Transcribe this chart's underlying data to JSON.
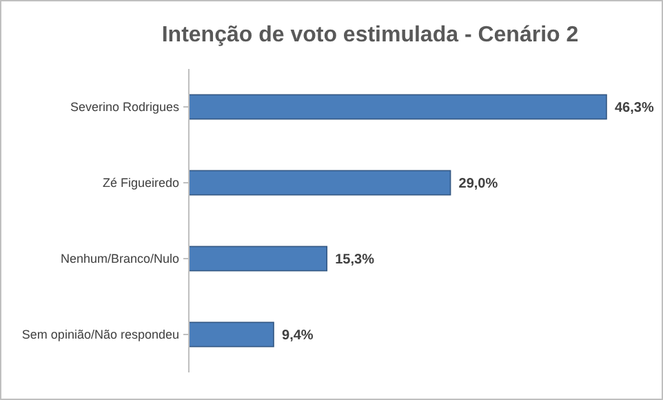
{
  "chart_data": {
    "type": "bar",
    "orientation": "horizontal",
    "title": "Intenção de voto estimulada - Cenário 2",
    "categories": [
      "Severino Rodrigues",
      "Zé Figueiredo",
      "Nenhum/Branco/Nulo",
      "Sem opinião/Não respondeu"
    ],
    "values": [
      46.3,
      29.0,
      15.3,
      9.4
    ],
    "value_labels": [
      "46,3%",
      "29,0%",
      "15,3%",
      "9,4%"
    ],
    "color": "#4a7ebb",
    "grid": false
  }
}
